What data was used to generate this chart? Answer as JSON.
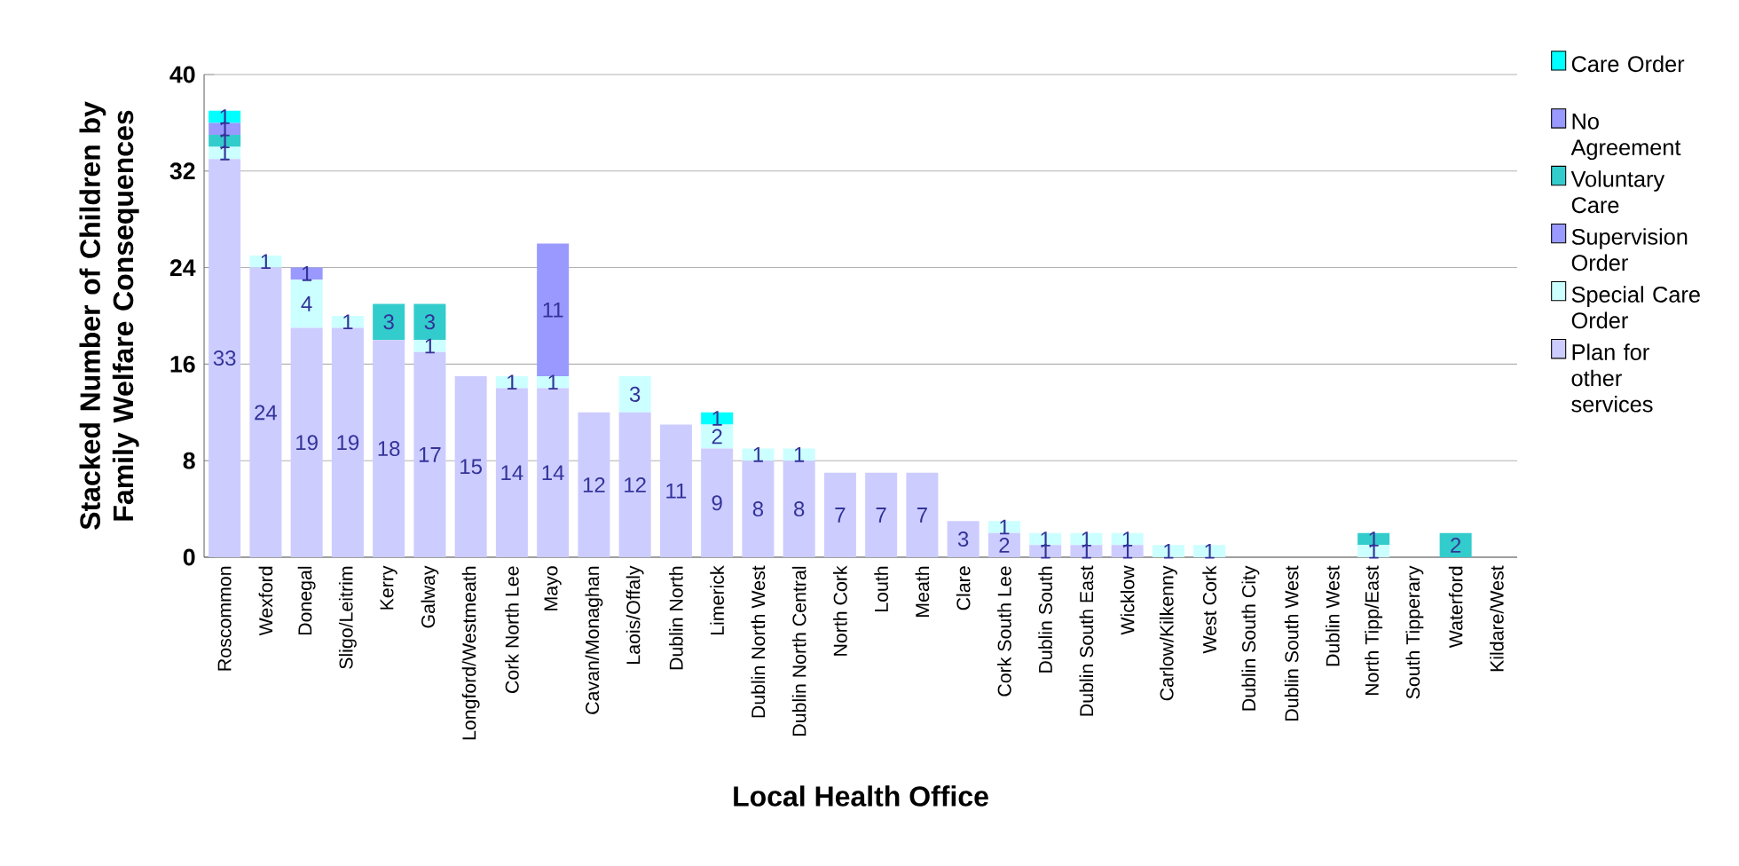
{
  "chart_data": {
    "type": "bar",
    "stacked": true,
    "xlabel": "Local Health Office",
    "ylabel": "Stacked Number of Children by Family Welfare Consequences",
    "categories": [
      "Roscommon",
      "Wexford",
      "Donegal",
      "Sligo/Leitrim",
      "Kerry",
      "Galway",
      "Longford/Westmeath",
      "Cork North Lee",
      "Mayo",
      "Cavan/Monaghan",
      "Laois/Offaly",
      "Dublin North",
      "Limerick",
      "Dublin North West",
      "Dublin North Central",
      "North Cork",
      "Louth",
      "Meath",
      "Clare",
      "Cork South Lee",
      "Dublin South",
      "Dublin South East",
      "Wicklow",
      "Carlow/Kilkenny",
      "West Cork",
      "Dublin South City",
      "Dublin South West",
      "Dublin West",
      "North Tipp/East",
      "South Tipperary",
      "Waterford",
      "Kildare/West"
    ],
    "series": [
      {
        "name": "Plan for other services",
        "color": "#ccccff",
        "values": [
          33,
          24,
          19,
          19,
          18,
          17,
          15,
          14,
          14,
          12,
          12,
          11,
          9,
          8,
          8,
          7,
          7,
          7,
          3,
          2,
          1,
          1,
          1,
          null,
          null,
          null,
          null,
          null,
          null,
          null,
          null,
          null
        ]
      },
      {
        "name": "Special Care Order",
        "color": "#ccffff",
        "values": [
          1,
          1,
          4,
          1,
          null,
          1,
          null,
          1,
          1,
          null,
          3,
          null,
          2,
          1,
          1,
          null,
          null,
          null,
          null,
          1,
          1,
          1,
          1,
          1,
          1,
          null,
          null,
          null,
          1,
          null,
          null,
          null
        ]
      },
      {
        "name": "Supervision Order",
        "color": "#9999ff",
        "values": [
          null,
          null,
          1,
          null,
          null,
          null,
          null,
          null,
          11,
          null,
          null,
          null,
          null,
          null,
          null,
          null,
          null,
          null,
          null,
          null,
          null,
          null,
          null,
          null,
          null,
          null,
          null,
          null,
          null,
          null,
          null,
          null
        ]
      },
      {
        "name": "Voluntary Care",
        "color": "#33cccc",
        "values": [
          1,
          null,
          null,
          null,
          3,
          3,
          null,
          null,
          null,
          null,
          null,
          null,
          null,
          null,
          null,
          null,
          null,
          null,
          null,
          null,
          null,
          null,
          null,
          null,
          null,
          null,
          null,
          null,
          1,
          null,
          2,
          null
        ]
      },
      {
        "name": "No Agreement",
        "color": "#9999ff",
        "values": [
          1,
          null,
          null,
          null,
          null,
          null,
          null,
          null,
          null,
          null,
          null,
          null,
          null,
          null,
          null,
          null,
          null,
          null,
          null,
          null,
          null,
          null,
          null,
          null,
          null,
          null,
          null,
          null,
          null,
          null,
          null,
          null
        ]
      },
      {
        "name": "Care Order",
        "color": "#00ffff",
        "values": [
          1,
          null,
          null,
          null,
          null,
          null,
          null,
          null,
          null,
          null,
          null,
          null,
          1,
          null,
          null,
          null,
          null,
          null,
          null,
          null,
          null,
          null,
          null,
          null,
          null,
          null,
          null,
          null,
          null,
          null,
          null,
          null
        ]
      }
    ],
    "ylim": [
      0,
      40
    ],
    "yticks": [
      0,
      8,
      16,
      24,
      32,
      40
    ],
    "grid": "y",
    "legend": "right",
    "data_labels": true
  }
}
